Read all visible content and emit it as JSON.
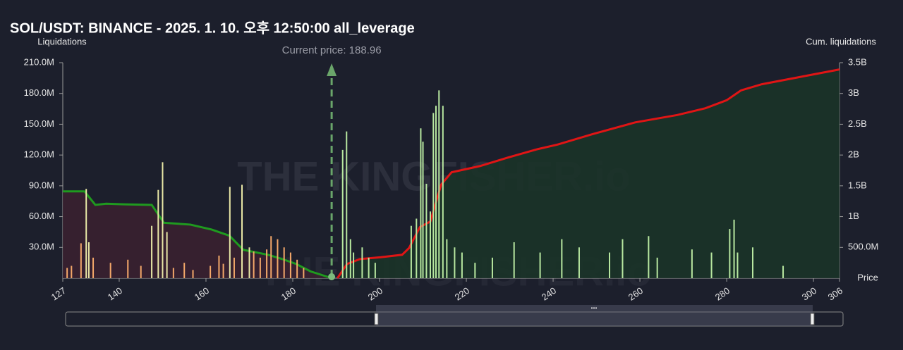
{
  "chart_data": {
    "type": "bar",
    "title": "SOL/USDT: BINANCE - 2025. 1. 10. 오후 12:50:00 all_leverage",
    "y_label": "Liquidations",
    "y2_label": "Cum. liquidations",
    "x_label": "Price",
    "watermark": "THE KINGFISHER.io",
    "current_price": {
      "value": 188.96,
      "label": "Current price: 188.96"
    },
    "xlim": [
      127,
      306
    ],
    "xticks": [
      127,
      140,
      160,
      180,
      200,
      220,
      240,
      260,
      280,
      300,
      306
    ],
    "ylim": [
      0,
      210
    ],
    "yticks": [
      {
        "value": 30,
        "label": "30.0M"
      },
      {
        "value": 60,
        "label": "60.0M"
      },
      {
        "value": 90,
        "label": "90.0M"
      },
      {
        "value": 120,
        "label": "120.0M"
      },
      {
        "value": 150,
        "label": "150.0M"
      },
      {
        "value": 180,
        "label": "180.0M"
      },
      {
        "value": 210,
        "label": "210.0M"
      }
    ],
    "y2lim": [
      0,
      3500
    ],
    "y2ticks": [
      {
        "value": 500,
        "label": "500.0M"
      },
      {
        "value": 1000,
        "label": "1B"
      },
      {
        "value": 1500,
        "label": "1.5B"
      },
      {
        "value": 2000,
        "label": "2B"
      },
      {
        "value": 2500,
        "label": "2.5B"
      },
      {
        "value": 3000,
        "label": "3B"
      },
      {
        "value": 3500,
        "label": "3.5B"
      }
    ],
    "series": [
      {
        "type": "bar",
        "color": "#f4a86a",
        "x": [
          128,
          129,
          131.2,
          134,
          138,
          142,
          145,
          152.5,
          155,
          157,
          161,
          163,
          164,
          166.5,
          171,
          172.5,
          174,
          175,
          176.5,
          178,
          179.5,
          181,
          182.5
        ],
        "values": [
          10,
          12,
          34,
          20,
          15,
          18,
          12,
          10,
          15,
          8,
          12,
          22,
          14,
          20,
          26,
          20,
          28,
          41,
          38,
          30,
          25,
          18,
          10
        ]
      },
      {
        "type": "bar",
        "color": "#e9e8a6",
        "x": [
          132.4,
          133,
          147.5,
          149,
          150,
          151,
          165.5,
          168.3,
          170
        ],
        "values": [
          87,
          35,
          51,
          86,
          113,
          45,
          89,
          91,
          30
        ]
      },
      {
        "type": "bar",
        "color": "#b8e8a0",
        "x": [
          191.5,
          192.4,
          193.3,
          194,
          196,
          197.5,
          199,
          207.3,
          208.5,
          209.5,
          210,
          210.8,
          211.7,
          212.4,
          213,
          213.7,
          214.6,
          215.5,
          217.3,
          219,
          222,
          226,
          231,
          237,
          242,
          246,
          253,
          256,
          262,
          264,
          272,
          276.5,
          280.7,
          281.7,
          282.5,
          286,
          293
        ],
        "values": [
          125,
          143,
          38,
          25,
          30,
          20,
          15,
          51,
          58,
          146,
          133,
          92,
          65,
          161,
          168,
          183,
          168,
          38,
          30,
          25,
          15,
          20,
          35,
          25,
          38,
          30,
          25,
          38,
          41,
          20,
          28,
          25,
          48,
          57,
          25,
          30,
          12
        ]
      },
      {
        "type": "line",
        "axis": "y2",
        "color": "#1f9a1f",
        "fill": "#3a2030",
        "x": [
          127,
          132,
          134.5,
          137,
          141,
          147.5,
          150.3,
          156.4,
          161.3,
          165.4,
          168.6,
          174.3,
          177.6,
          180.8,
          184.1,
          189
        ],
        "values": [
          1410,
          1410,
          1190,
          1210,
          1200,
          1190,
          900,
          870,
          790,
          690,
          460,
          380,
          310,
          230,
          110,
          0
        ]
      },
      {
        "type": "line",
        "axis": "y2",
        "color": "#e01515",
        "fill": "#1b3328",
        "x": [
          190.3,
          192.5,
          195.5,
          200.3,
          205.2,
          206.8,
          209.3,
          211.7,
          214.2,
          216.6,
          223.1,
          229.6,
          236.1,
          241,
          249.1,
          258.9,
          268.6,
          275.1,
          280,
          283.3,
          288.1,
          296.3,
          306
        ],
        "values": [
          0,
          230,
          310,
          340,
          380,
          490,
          830,
          920,
          1520,
          1720,
          1820,
          1960,
          2090,
          2170,
          2340,
          2530,
          2650,
          2760,
          2890,
          3050,
          3150,
          3260,
          3390
        ]
      }
    ]
  }
}
